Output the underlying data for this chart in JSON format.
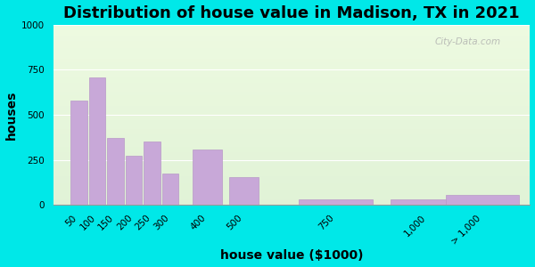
{
  "title": "Distribution of house value in Madison, TX in 2021",
  "xlabel": "house value ($1000)",
  "ylabel": "houses",
  "bar_centers": [
    50,
    100,
    150,
    200,
    250,
    300,
    400,
    500,
    750,
    1000,
    1150
  ],
  "bar_widths": [
    45,
    45,
    45,
    45,
    45,
    45,
    80,
    80,
    200,
    200,
    200
  ],
  "bar_values": [
    580,
    710,
    370,
    275,
    350,
    175,
    305,
    155,
    30,
    30,
    55
  ],
  "bar_labels": [
    "50",
    "100",
    "150",
    "200",
    "250",
    "300",
    "400",
    "500",
    "750",
    "1,000",
    "> 1,000"
  ],
  "bar_color": "#c8a8d8",
  "bar_edge_color": "#b898c8",
  "bg_outer": "#00e8e8",
  "ylim": [
    0,
    1000
  ],
  "yticks": [
    0,
    250,
    500,
    750,
    1000
  ],
  "xlim": [
    -20,
    1280
  ],
  "xtick_positions": [
    50,
    100,
    150,
    200,
    250,
    300,
    400,
    500,
    750,
    1000,
    1150
  ],
  "title_fontsize": 13,
  "axis_label_fontsize": 10,
  "tick_fontsize": 7.5,
  "watermark_text": "City-Data.com"
}
